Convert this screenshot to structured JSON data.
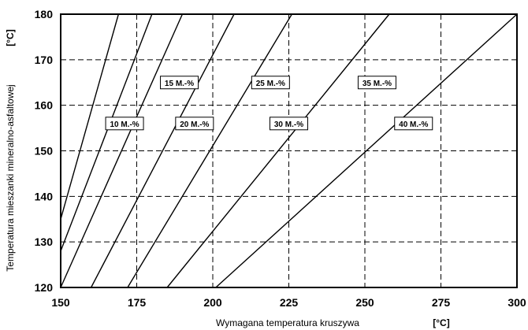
{
  "chart_data": {
    "type": "line",
    "title": "",
    "xlabel": "Wymagana temperatura kruszywa",
    "ylabel": "Temperatura mieszanki mineralno-asfaltowej",
    "x_unit": "[°C]",
    "y_unit": "[°C]",
    "xlim": [
      150,
      300
    ],
    "ylim": [
      120,
      180
    ],
    "xticks": [
      150,
      175,
      200,
      225,
      250,
      275,
      300
    ],
    "yticks": [
      120,
      130,
      140,
      150,
      160,
      170,
      180
    ],
    "grid": true,
    "grid_style": "dashed",
    "series": [
      {
        "name": "10 M.-%",
        "x": [
          150,
          169
        ],
        "y": [
          135,
          180
        ]
      },
      {
        "name": "15 M.-%",
        "x": [
          150,
          180
        ],
        "y": [
          128,
          180
        ]
      },
      {
        "name": "20 M.-%",
        "x": [
          150,
          190
        ],
        "y": [
          120,
          180
        ]
      },
      {
        "name": "25 M.-%",
        "x": [
          160,
          207
        ],
        "y": [
          120,
          180
        ]
      },
      {
        "name": "30 M.-%",
        "x": [
          172,
          226
        ],
        "y": [
          120,
          180
        ]
      },
      {
        "name": "35 M.-%",
        "x": [
          185,
          258
        ],
        "y": [
          120,
          180
        ]
      },
      {
        "name": "40 M.-%",
        "x": [
          201,
          300
        ],
        "y": [
          120,
          180
        ]
      }
    ],
    "label_positions": [
      {
        "label": "10 M.-%",
        "x": 171,
        "y": 156
      },
      {
        "label": "15 M.-%",
        "x": 189,
        "y": 165
      },
      {
        "label": "20 M.-%",
        "x": 194,
        "y": 156
      },
      {
        "label": "25 M.-%",
        "x": 219,
        "y": 165
      },
      {
        "label": "30 M.-%",
        "x": 225,
        "y": 156
      },
      {
        "label": "35 M.-%",
        "x": 254,
        "y": 165
      },
      {
        "label": "40 M.-%",
        "x": 266,
        "y": 156
      }
    ]
  }
}
